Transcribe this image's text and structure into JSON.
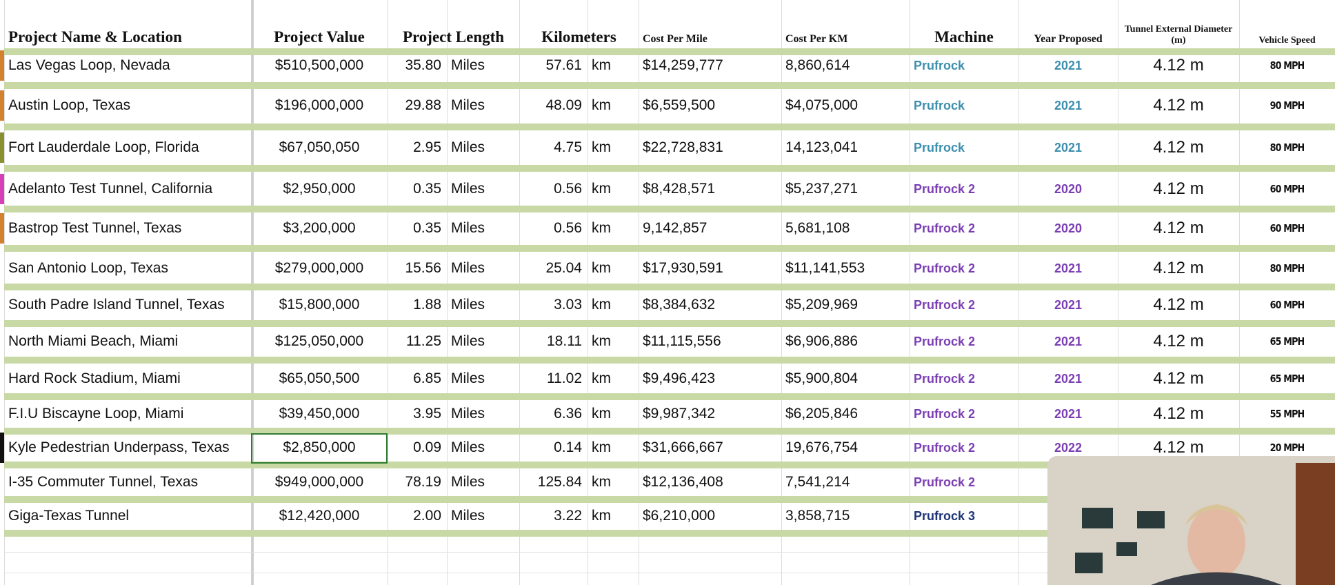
{
  "table": {
    "headers": [
      "Project Name & Location",
      "Project Value",
      "Project Length",
      "Kilometers",
      "Cost Per Mile",
      "Cost Per KM",
      "Machine",
      "Year Proposed",
      "Tunnel External Diameter (m)",
      "Vehicle Speed"
    ],
    "rows": [
      [
        "Las Vegas Loop, Nevada",
        "$510,500,000",
        "35.80",
        "Miles",
        "57.61",
        "km",
        "$14,259,777",
        "8,860,614",
        "Prufrock",
        "2021",
        "4.12 m",
        "80 MPH"
      ],
      [
        "Austin Loop, Texas",
        "$196,000,000",
        "29.88",
        "Miles",
        "48.09",
        "km",
        "$6,559,500",
        "$4,075,000",
        "Prufrock",
        "2021",
        "4.12 m",
        "90 MPH"
      ],
      [
        "Fort Lauderdale Loop, Florida",
        "$67,050,050",
        "2.95",
        "Miles",
        "4.75",
        "km",
        "$22,728,831",
        "14,123,041",
        "Prufrock",
        "2021",
        "4.12 m",
        "80 MPH"
      ],
      [
        "Adelanto Test Tunnel, California",
        "$2,950,000",
        "0.35",
        "Miles",
        "0.56",
        "km",
        "$8,428,571",
        "$5,237,271",
        "Prufrock 2",
        "2020",
        "4.12 m",
        "60 MPH"
      ],
      [
        "Bastrop Test Tunnel, Texas",
        "$3,200,000",
        "0.35",
        "Miles",
        "0.56",
        "km",
        "9,142,857",
        "5,681,108",
        "Prufrock 2",
        "2020",
        "4.12 m",
        "60 MPH"
      ],
      [
        "San Antonio Loop, Texas",
        "$279,000,000",
        "15.56",
        "Miles",
        "25.04",
        "km",
        "$17,930,591",
        "$11,141,553",
        "Prufrock 2",
        "2021",
        "4.12 m",
        "80 MPH"
      ],
      [
        "South Padre Island Tunnel, Texas",
        "$15,800,000",
        "1.88",
        "Miles",
        "3.03",
        "km",
        "$8,384,632",
        "$5,209,969",
        "Prufrock 2",
        "2021",
        "4.12 m",
        "60 MPH"
      ],
      [
        "North Miami Beach, Miami",
        "$125,050,000",
        "11.25",
        "Miles",
        "18.11",
        "km",
        "$11,115,556",
        "$6,906,886",
        "Prufrock 2",
        "2021",
        "4.12 m",
        "65 MPH"
      ],
      [
        "Hard Rock Stadium, Miami",
        "$65,050,500",
        "6.85",
        "Miles",
        "11.02",
        "km",
        "$9,496,423",
        "$5,900,804",
        "Prufrock 2",
        "2021",
        "4.12 m",
        "65 MPH"
      ],
      [
        "F.I.U Biscayne Loop, Miami",
        "$39,450,000",
        "3.95",
        "Miles",
        "6.36",
        "km",
        "$9,987,342",
        "$6,205,846",
        "Prufrock 2",
        "2021",
        "4.12 m",
        "55 MPH"
      ],
      [
        "Kyle Pedestrian Underpass, Texas",
        "$2,850,000",
        "0.09",
        "Miles",
        "0.14",
        "km",
        "$31,666,667",
        "19,676,754",
        "Prufrock 2",
        "2022",
        "4.12 m",
        "20 MPH"
      ],
      [
        "I-35 Commuter Tunnel, Texas",
        "$949,000,000",
        "78.19",
        "Miles",
        "125.84",
        "km",
        "$12,136,408",
        "7,541,214",
        "Prufrock 2"
      ],
      [
        "Giga-Texas Tunnel",
        "$12,420,000",
        "2.00",
        "Miles",
        "3.22",
        "km",
        "$6,210,000",
        "3,858,715",
        "Prufrock 3"
      ]
    ]
  }
}
